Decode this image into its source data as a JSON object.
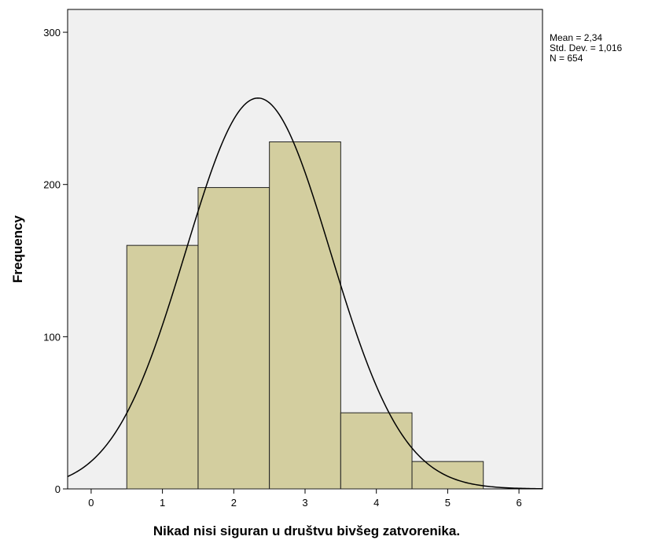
{
  "chart_data": {
    "type": "bar",
    "subtype": "histogram",
    "bins": [
      {
        "center": 1,
        "range": [
          0.5,
          1.5
        ],
        "frequency": 160
      },
      {
        "center": 2,
        "range": [
          1.5,
          2.5
        ],
        "frequency": 198
      },
      {
        "center": 3,
        "range": [
          2.5,
          3.5
        ],
        "frequency": 228
      },
      {
        "center": 4,
        "range": [
          3.5,
          4.5
        ],
        "frequency": 50
      },
      {
        "center": 5,
        "range": [
          4.5,
          5.5
        ],
        "frequency": 18
      }
    ],
    "x_ticks": [
      "0",
      "1",
      "2",
      "3",
      "4",
      "5",
      "6"
    ],
    "y_ticks": [
      "0",
      "100",
      "200",
      "300"
    ],
    "xlim": [
      -0.33,
      6.33
    ],
    "ylim": [
      0,
      315
    ],
    "xlabel": "Nikad nisi siguran u društvu bivšeg zatvorenika.",
    "ylabel": "Frequency",
    "stats": [
      "Mean = 2,34",
      "Std. Dev. = 1,016",
      "N = 654"
    ],
    "normal_curve": {
      "mean": 2.34,
      "std_dev": 1.016,
      "n": 654,
      "bin_width": 1
    },
    "grid": false,
    "colors": {
      "bar_fill": "#d3ce9f",
      "bar_stroke": "#222222",
      "plot_background": "#f0f0f0",
      "curve": "#000000"
    }
  }
}
